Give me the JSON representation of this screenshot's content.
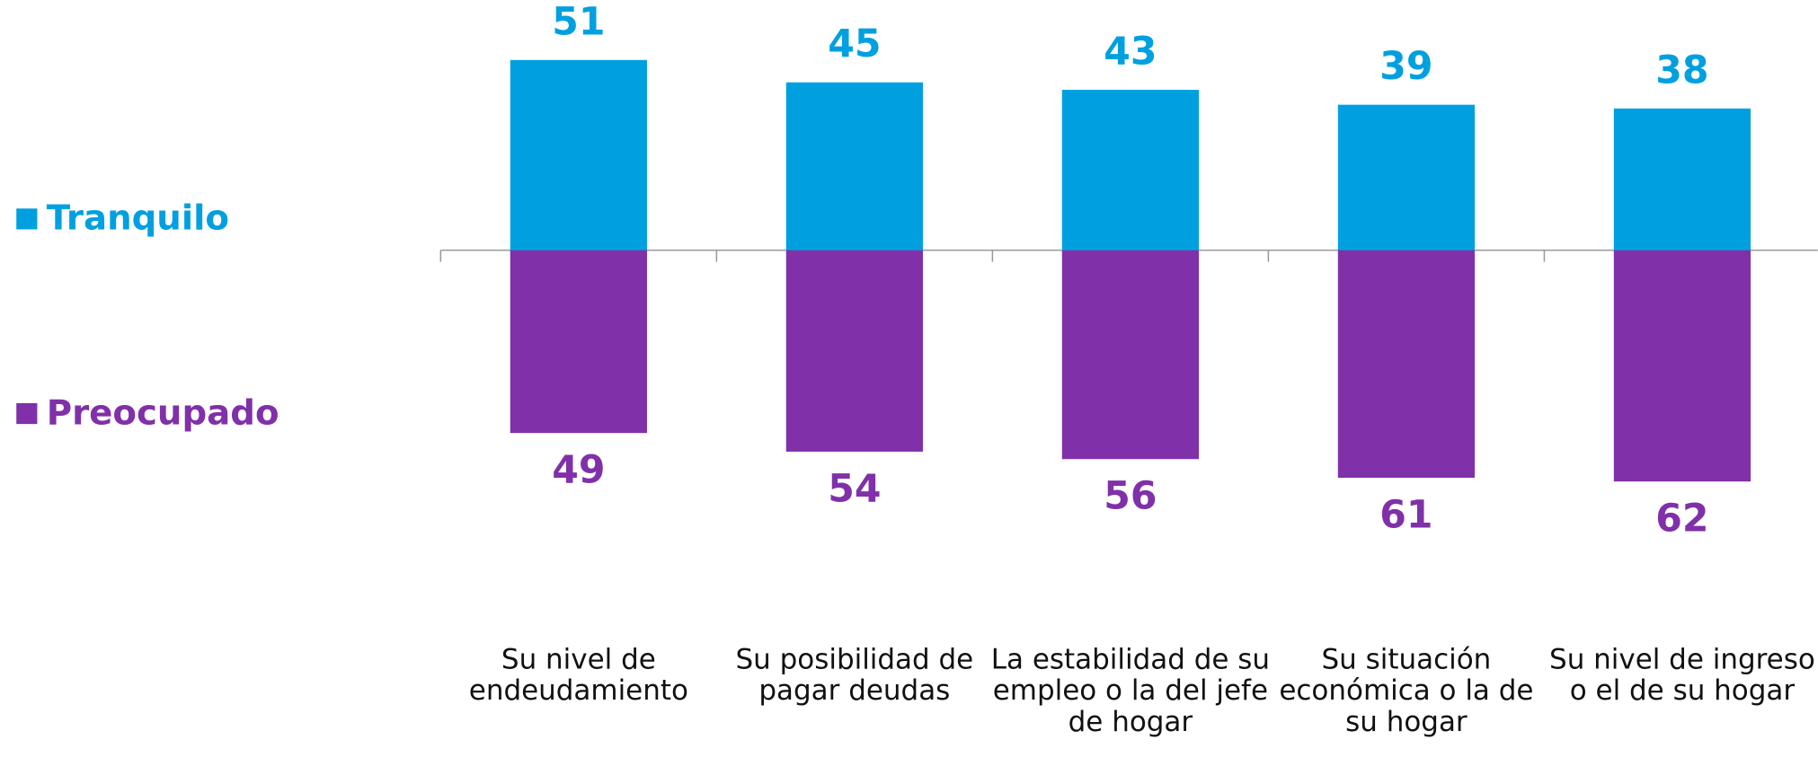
{
  "chart_data": {
    "type": "diverging_bar",
    "categories": [
      "Su nivel de endeudamiento",
      "Su posibilidad de pagar deudas",
      "La estabilidad de su empleo o la del jefe de hogar",
      "Su situación económica o la de su hogar",
      "Su nivel de ingreso o el de su hogar"
    ],
    "series": [
      {
        "name": "Tranquilo",
        "color": "#00a0e0",
        "values": [
          51,
          45,
          43,
          39,
          38
        ]
      },
      {
        "name": "Preocupado",
        "color": "#8030a8",
        "values": [
          49,
          54,
          56,
          61,
          62
        ]
      }
    ]
  }
}
